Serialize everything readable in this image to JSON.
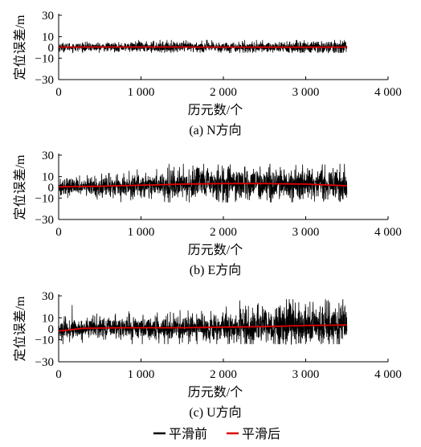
{
  "colors": {
    "before": "#000000",
    "after": "#e00000"
  },
  "legend": {
    "before": "平滑前",
    "after": "平滑后"
  },
  "chart_data": [
    {
      "type": "line",
      "caption": "(a) N方向",
      "xlabel": "历元数/个",
      "ylabel": "定位误差/m",
      "xlim": [
        0,
        4000
      ],
      "ylim": [
        -30,
        30
      ],
      "xticks": [
        0,
        1000,
        2000,
        3000,
        4000
      ],
      "xticklabels": [
        "0",
        "1 000",
        "2 000",
        "3 000",
        "4 000"
      ],
      "yticks": [
        -30,
        -10,
        0,
        10,
        30
      ],
      "yticklabels": [
        "−30",
        "−10",
        "0",
        "10",
        "30"
      ],
      "n_epochs": 3500,
      "series": [
        {
          "name": "平滑前",
          "noise_amplitude": [
            2,
            2,
            2.5,
            2.5,
            2.5,
            2.5,
            3,
            3
          ],
          "range": [
            -5,
            7
          ]
        },
        {
          "name": "平滑后",
          "x": [
            0,
            1000,
            2000,
            3000,
            3500
          ],
          "y": [
            0.3,
            0.4,
            0.3,
            0.2,
            0.3
          ]
        }
      ]
    },
    {
      "type": "line",
      "caption": "(b) E方向",
      "xlabel": "历元数/个",
      "ylabel": "定位误差/m",
      "xlim": [
        0,
        4000
      ],
      "ylim": [
        -30,
        30
      ],
      "xticks": [
        0,
        1000,
        2000,
        3000,
        4000
      ],
      "xticklabels": [
        "0",
        "1 000",
        "2 000",
        "3 000",
        "4 000"
      ],
      "yticks": [
        -30,
        -10,
        0,
        10,
        30
      ],
      "yticklabels": [
        "−30",
        "−10",
        "0",
        "10",
        "30"
      ],
      "n_epochs": 3500,
      "series": [
        {
          "name": "平滑前",
          "noise_amplitude": [
            4,
            5,
            6,
            7,
            7.5,
            7.5,
            7,
            7.5
          ],
          "range": [
            -14,
            22
          ]
        },
        {
          "name": "平滑后",
          "x": [
            0,
            500,
            1000,
            1500,
            2000,
            2500,
            3000,
            3500
          ],
          "y": [
            0.5,
            1.0,
            2.0,
            3.0,
            3.5,
            3.5,
            3.0,
            1.5
          ]
        }
      ]
    },
    {
      "type": "line",
      "caption": "(c) U方向",
      "xlabel": "历元数/个",
      "ylabel": "定位误差/m",
      "xlim": [
        0,
        4000
      ],
      "ylim": [
        -30,
        30
      ],
      "xticks": [
        0,
        1000,
        2000,
        3000,
        4000
      ],
      "xticklabels": [
        "0",
        "1 000",
        "2 000",
        "3 000",
        "4 000"
      ],
      "yticks": [
        -30,
        -10,
        0,
        10,
        30
      ],
      "yticklabels": [
        "−30",
        "−10",
        "0",
        "10",
        "30"
      ],
      "n_epochs": 3500,
      "series": [
        {
          "name": "平滑前",
          "noise_amplitude": [
            5,
            5,
            5,
            5.5,
            7,
            8,
            10,
            10
          ],
          "range": [
            -14,
            27
          ]
        },
        {
          "name": "平滑后",
          "x": [
            0,
            300,
            800,
            1500,
            2000,
            2500,
            3000,
            3500
          ],
          "y": [
            -2,
            0.5,
            1.0,
            1.0,
            1.5,
            2.0,
            3.0,
            3.5
          ]
        }
      ]
    }
  ]
}
